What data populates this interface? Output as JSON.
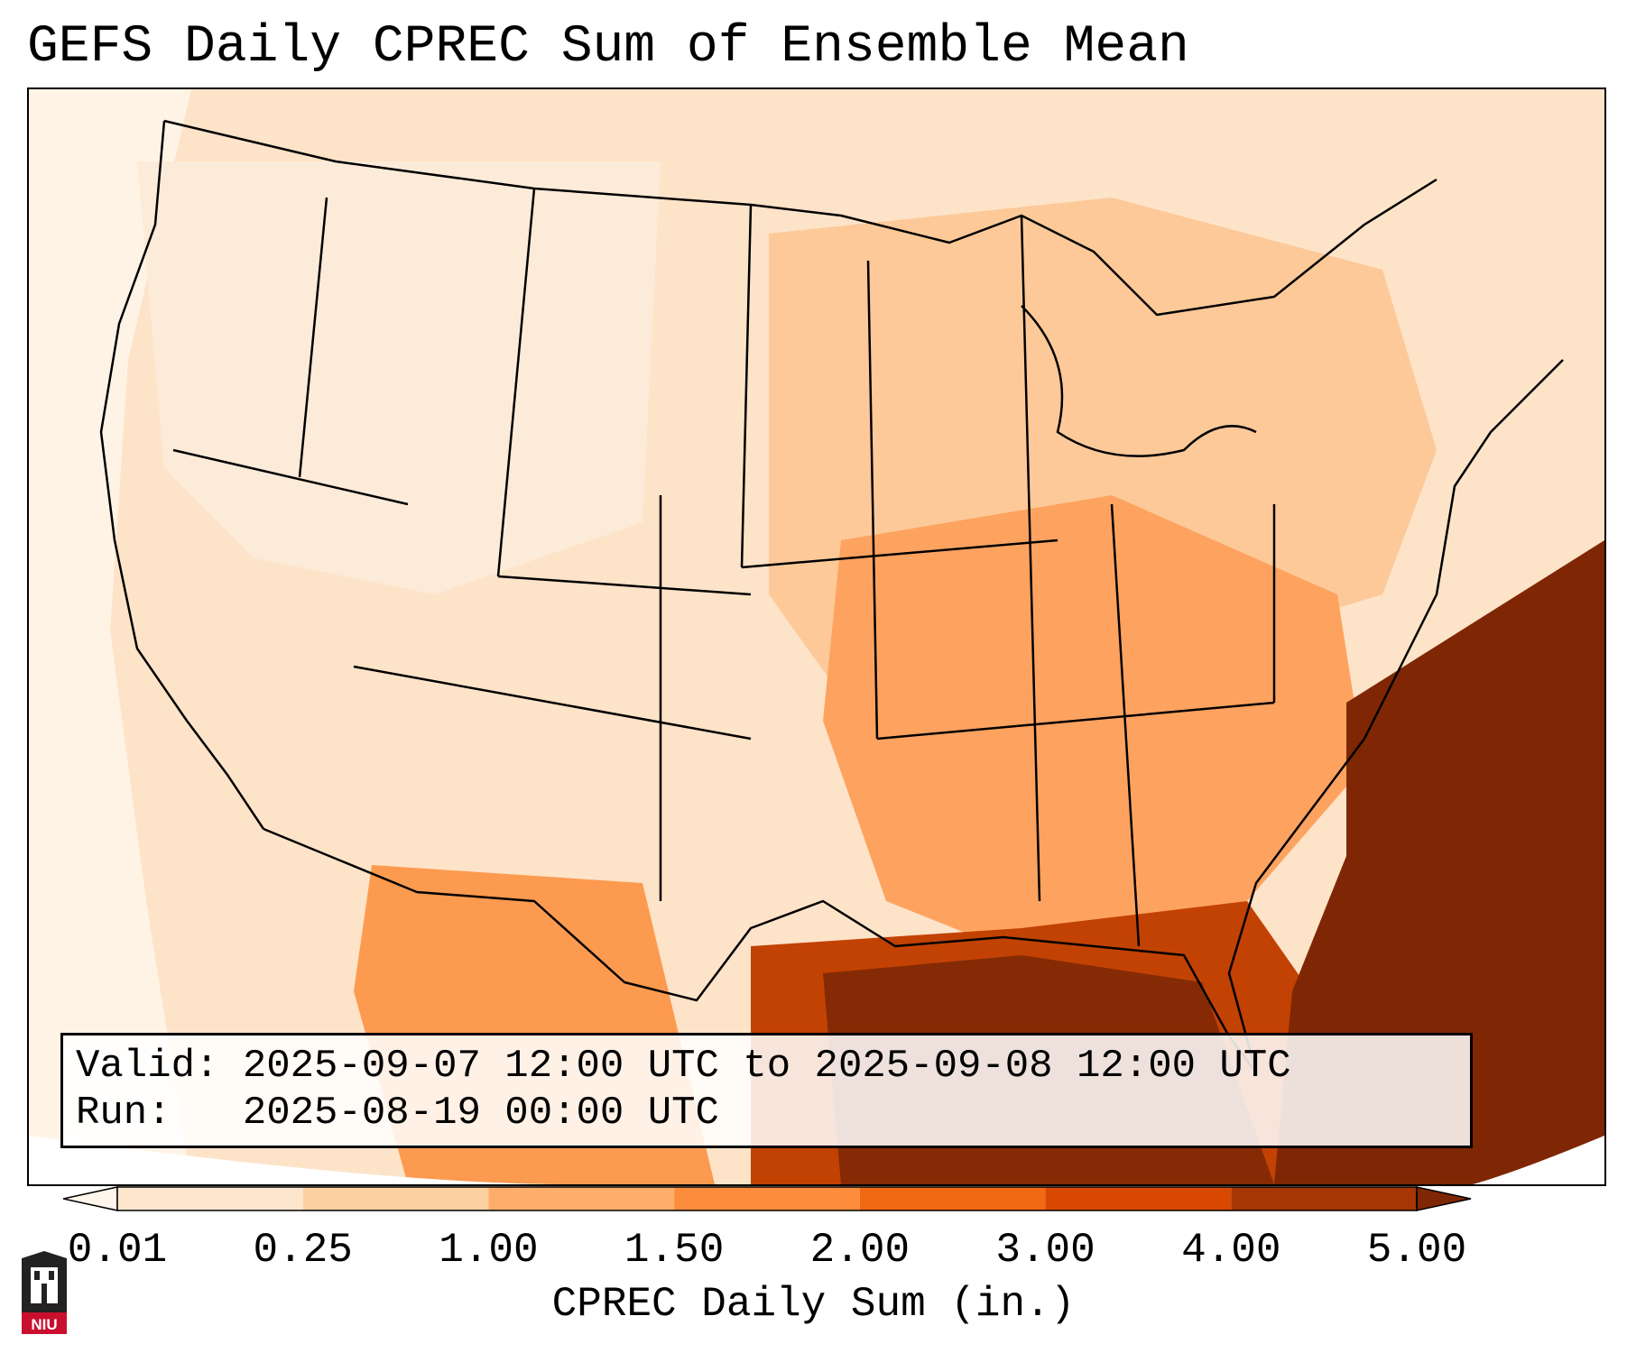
{
  "title": "GEFS Daily CPREC Sum of Ensemble Mean",
  "info": {
    "valid_label": "Valid:",
    "valid_value": "2025-09-07 12:00 UTC to 2025-09-08 12:00 UTC",
    "run_label": "Run:",
    "run_value": "2025-08-19 00:00 UTC"
  },
  "colorbar": {
    "label": "CPREC Daily Sum (in.)",
    "ticks": [
      "0.01",
      "0.25",
      "1.00",
      "1.50",
      "2.00",
      "3.00",
      "4.00",
      "5.00"
    ],
    "colors": [
      "#fff5eb",
      "#fee6ce",
      "#fdd0a2",
      "#fdae6b",
      "#fd8d3c",
      "#f16913",
      "#d94801",
      "#a63603",
      "#7f2704"
    ]
  },
  "logo": {
    "text": "NIU"
  }
}
